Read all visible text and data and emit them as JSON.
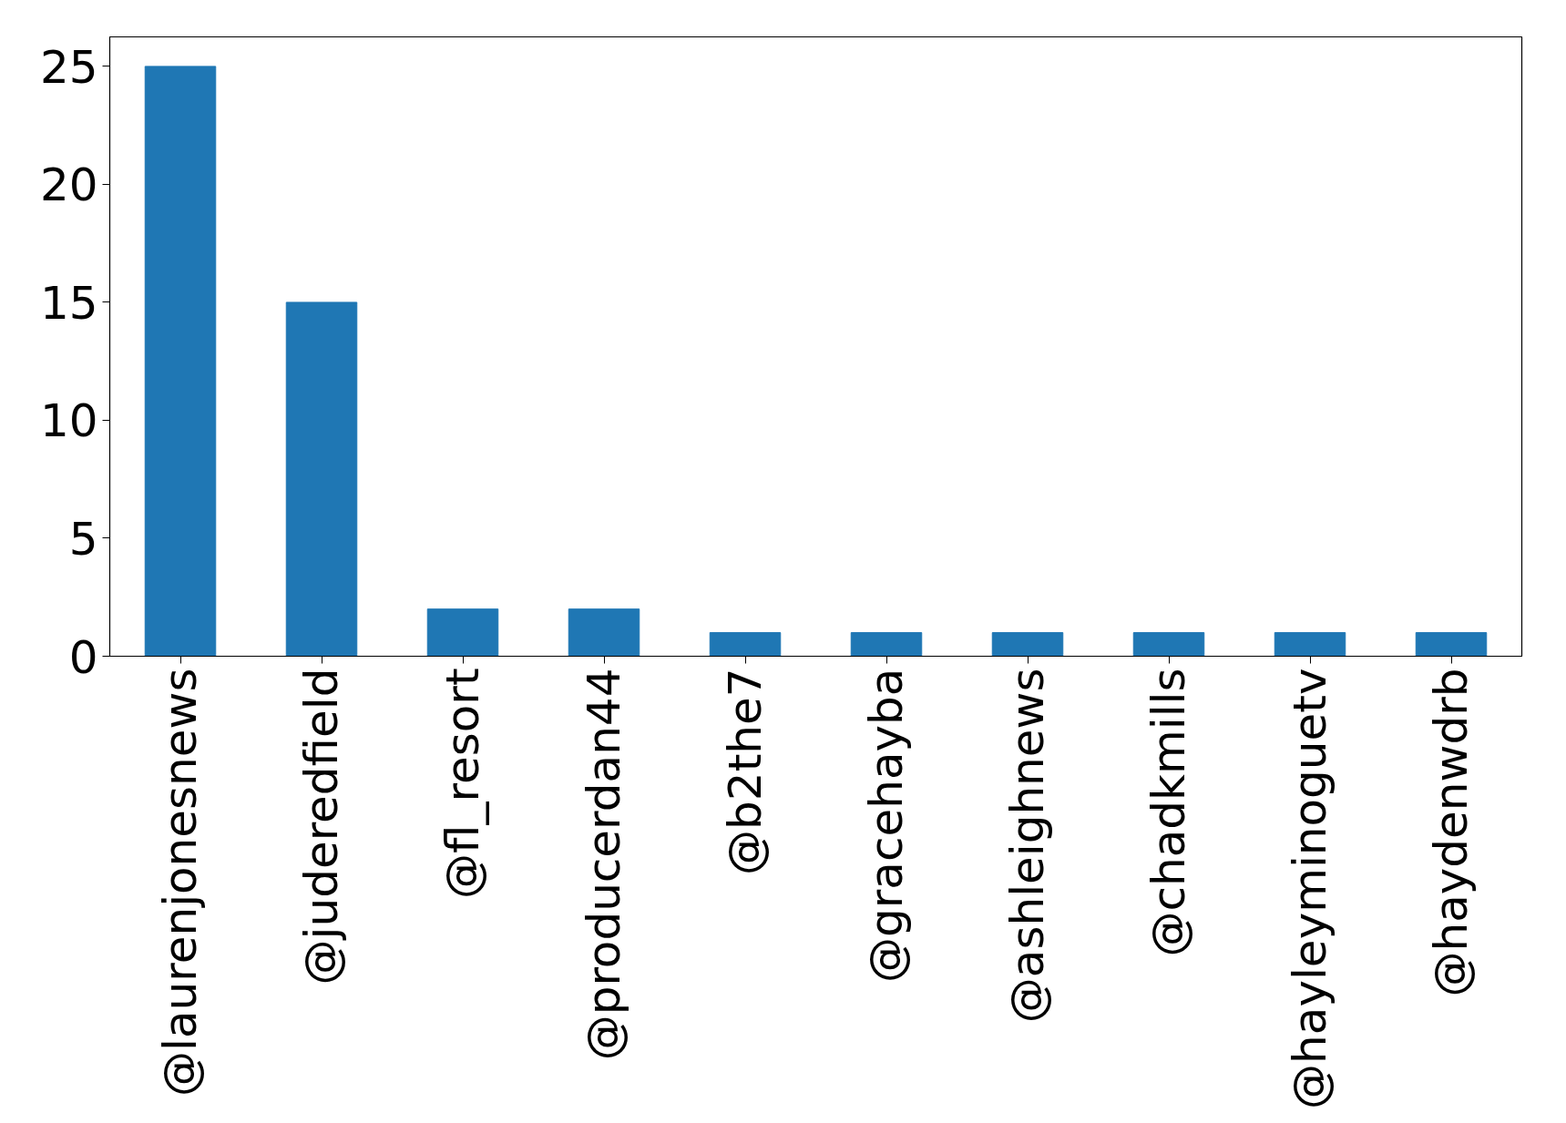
{
  "chart_data": {
    "type": "bar",
    "categories": [
      "@laurenjonesnews",
      "@juderedfield",
      "@fl_resort",
      "@producerdan44",
      "@b2the7",
      "@gracehayba",
      "@ashleighnews",
      "@chadkmills",
      "@hayleyminoguetv",
      "@haydenwdrb"
    ],
    "values": [
      25,
      15,
      2,
      2,
      1,
      1,
      1,
      1,
      1,
      1
    ],
    "color": "#1f77b4",
    "ylim": [
      0,
      26.25
    ],
    "yticks": [
      0,
      5,
      10,
      15,
      20,
      25
    ],
    "grid": false
  }
}
